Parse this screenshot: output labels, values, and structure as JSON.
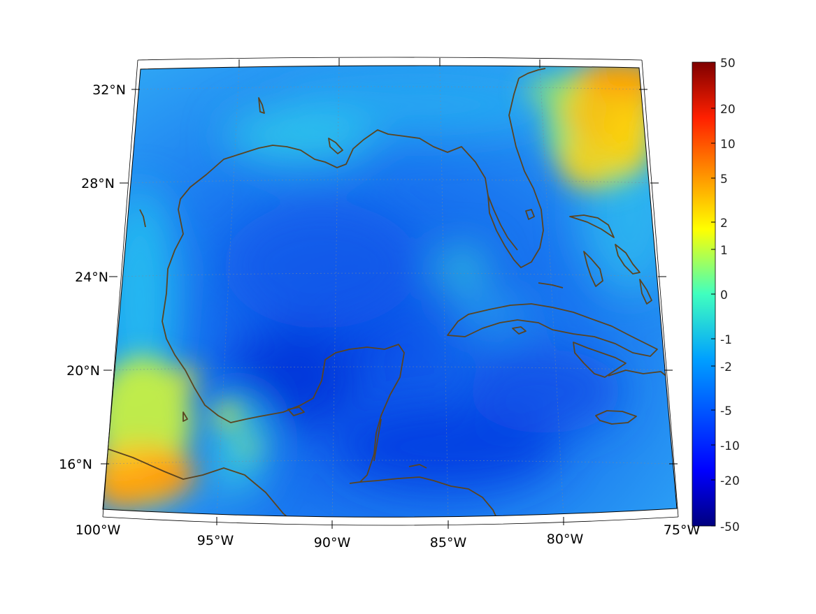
{
  "map": {
    "lon_labels": [
      "100°W",
      "95°W",
      "90°W",
      "85°W",
      "80°W",
      "75°W"
    ],
    "lat_labels": [
      "16°N",
      "20°N",
      "24°N",
      "28°N",
      "32°N"
    ],
    "extent": {
      "lon_min": -100,
      "lon_max": -75,
      "lat_min": 14,
      "lat_max": 33
    },
    "coastline_color": "#5a4420"
  },
  "colorbar": {
    "tick_labels": [
      "50",
      "20",
      "10",
      "5",
      "2",
      "1",
      "0",
      "-1",
      "-2",
      "-5",
      "-10",
      "-20",
      "-50"
    ],
    "colormap": "jet"
  }
}
